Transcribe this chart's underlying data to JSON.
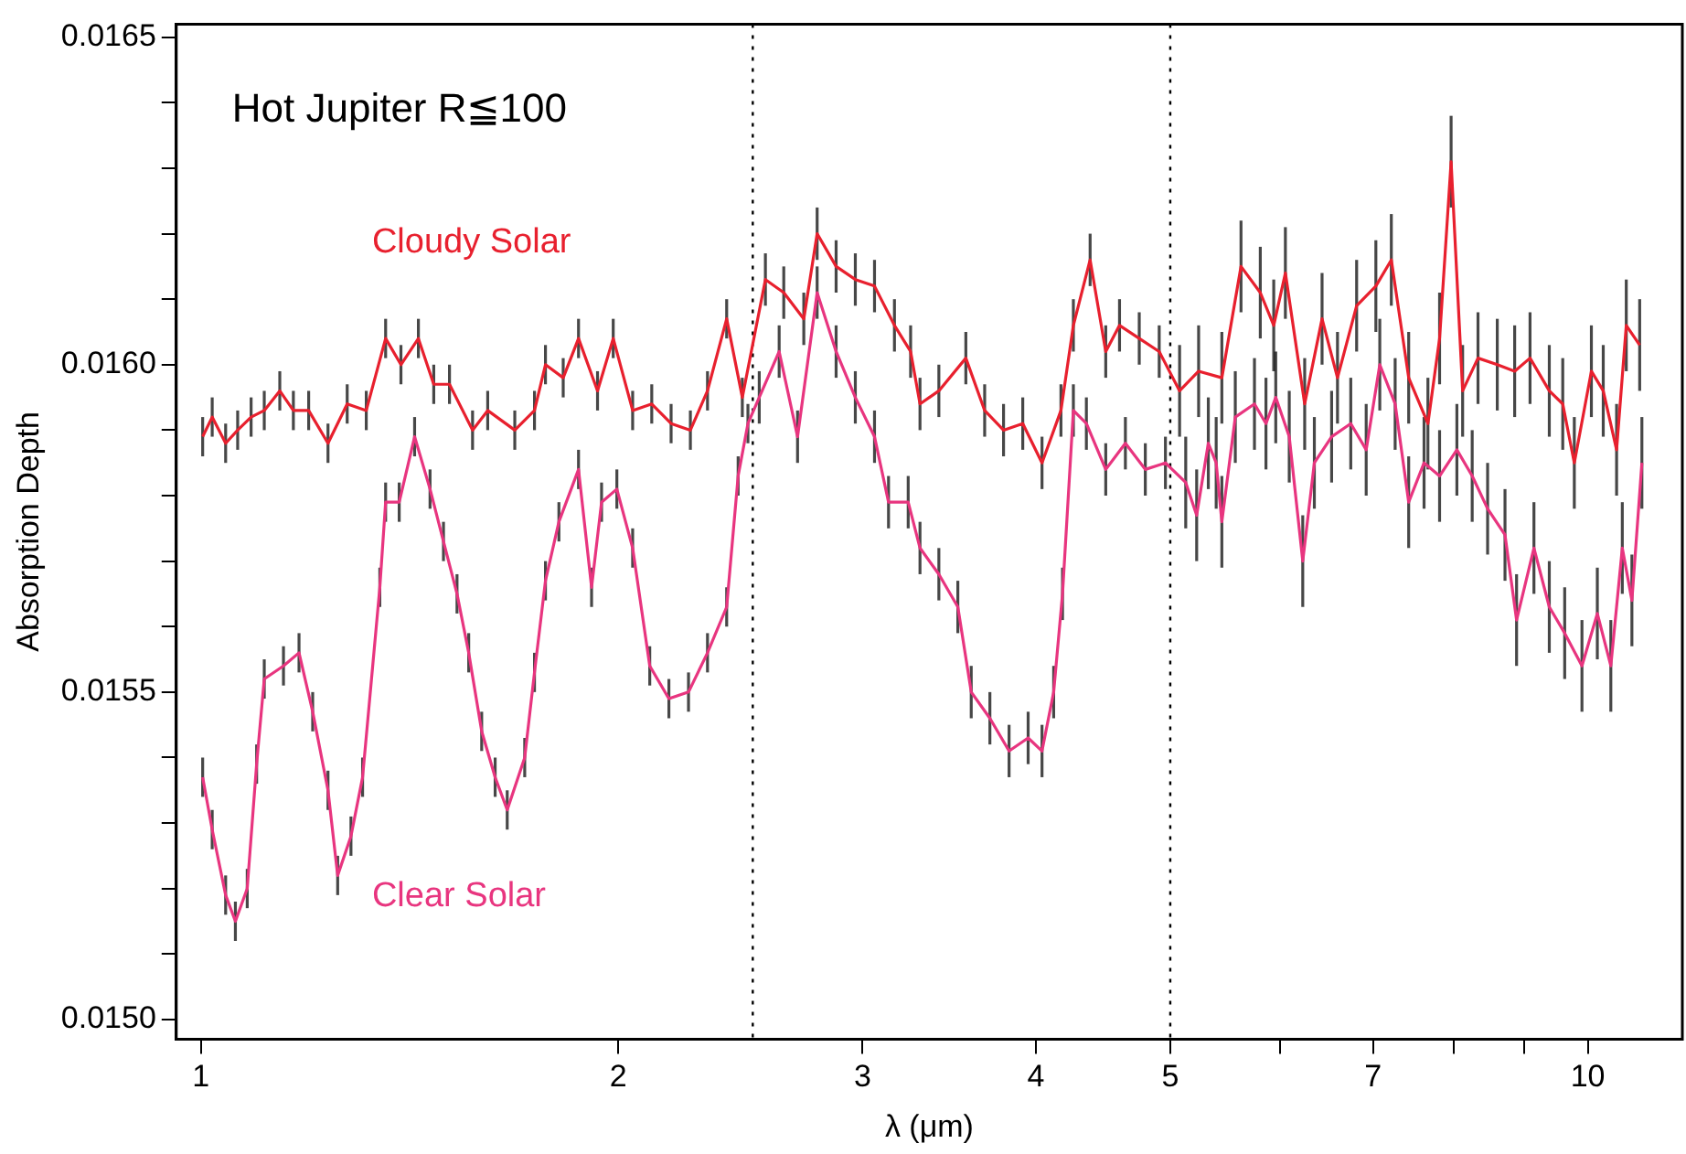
{
  "chart_data": {
    "type": "line",
    "xlabel": "λ (μm)",
    "ylabel": "Absorption Depth",
    "annotations": [
      "Hot Jupiter R≦100"
    ],
    "log": "x",
    "grid": false,
    "marker": "none",
    "line_style": "solid",
    "xlim": [
      0.96,
      11.7
    ],
    "xticks": [
      1,
      2,
      3,
      4,
      5,
      {
        "value": 6,
        "label": null
      },
      7,
      {
        "value": 8,
        "label": null
      },
      {
        "value": 9,
        "label": null
      },
      10
    ],
    "ylim": [
      0.01497,
      0.01652
    ],
    "yticks": [
      {
        "value": 0.015,
        "label": "0.0150"
      },
      {
        "value": 0.0151,
        "label": null
      },
      {
        "value": 0.0152,
        "label": null
      },
      {
        "value": 0.0153,
        "label": null
      },
      {
        "value": 0.0154,
        "label": null
      },
      {
        "value": 0.0155,
        "label": "0.0155"
      },
      {
        "value": 0.0156,
        "label": null
      },
      {
        "value": 0.0157,
        "label": null
      },
      {
        "value": 0.0158,
        "label": null
      },
      {
        "value": 0.0159,
        "label": null
      },
      {
        "value": 0.016,
        "label": "0.0160"
      },
      {
        "value": 0.0161,
        "label": null
      },
      {
        "value": 0.0162,
        "label": null
      },
      {
        "value": 0.0163,
        "label": null
      },
      {
        "value": 0.0164,
        "label": null
      },
      {
        "value": 0.0165,
        "label": "0.0165"
      }
    ],
    "ref_lines": [
      {
        "axis": "x",
        "value": 2.5,
        "line_style": "dotted",
        "color": "#000000"
      },
      {
        "axis": "x",
        "value": 5,
        "line_style": "dotted",
        "color": "#000000"
      }
    ],
    "series": [
      {
        "name": "Cloudy Solar",
        "color": "#e8202e",
        "x": [
          1.003,
          1.019,
          1.042,
          1.063,
          1.087,
          1.111,
          1.14,
          1.166,
          1.196,
          1.235,
          1.275,
          1.316,
          1.359,
          1.394,
          1.435,
          1.472,
          1.511,
          1.57,
          1.61,
          1.684,
          1.74,
          1.772,
          1.825,
          1.872,
          1.932,
          1.983,
          2.048,
          2.114,
          2.183,
          2.254,
          2.319,
          2.394,
          2.457,
          2.553,
          2.632,
          2.721,
          2.782,
          2.871,
          2.964,
          3.06,
          3.163,
          3.249,
          3.3,
          3.405,
          3.561,
          3.674,
          3.791,
          3.914,
          4.041,
          4.17,
          4.257,
          4.377,
          4.492,
          4.596,
          4.749,
          4.909,
          5.078,
          5.241,
          5.447,
          5.623,
          5.806,
          5.937,
          6.053,
          6.25,
          6.433,
          6.6,
          6.813,
          7.034,
          7.217,
          7.428,
          7.669,
          7.819,
          7.97,
          8.124,
          8.334,
          8.605,
          8.857,
          9.086,
          9.381,
          9.593,
          9.779,
          10.06,
          10.26,
          10.49,
          10.66,
          10.9
        ],
        "values": [
          0.01589,
          0.01592,
          0.01588,
          0.0159,
          0.01592,
          0.01593,
          0.01596,
          0.01593,
          0.01593,
          0.01588,
          0.01594,
          0.01593,
          0.01604,
          0.016,
          0.01604,
          0.01597,
          0.01597,
          0.0159,
          0.01593,
          0.0159,
          0.01593,
          0.016,
          0.01598,
          0.01604,
          0.01596,
          0.01604,
          0.01593,
          0.01594,
          0.01591,
          0.0159,
          0.01596,
          0.01607,
          0.01595,
          0.01613,
          0.01611,
          0.01607,
          0.0162,
          0.01615,
          0.01613,
          0.01612,
          0.01606,
          0.01602,
          0.01594,
          0.01596,
          0.01601,
          0.01593,
          0.0159,
          0.01591,
          0.01585,
          0.01593,
          0.01606,
          0.01616,
          0.01602,
          0.01606,
          0.01604,
          0.01602,
          0.01596,
          0.01599,
          0.01598,
          0.01615,
          0.01611,
          0.01606,
          0.01614,
          0.01594,
          0.01607,
          0.01598,
          0.01609,
          0.01612,
          0.01616,
          0.01598,
          0.01591,
          0.01604,
          0.01631,
          0.01596,
          0.01601,
          0.016,
          0.01599,
          0.01601,
          0.01596,
          0.01594,
          0.01585,
          0.01599,
          0.01596,
          0.01587,
          0.01606,
          0.01603
        ],
        "errors": [
          3e-05,
          3e-05,
          3e-05,
          3e-05,
          3e-05,
          3e-05,
          3e-05,
          3e-05,
          3e-05,
          3e-05,
          3e-05,
          3e-05,
          3e-05,
          3e-05,
          3e-05,
          3e-05,
          3e-05,
          3e-05,
          3e-05,
          3e-05,
          3e-05,
          3e-05,
          3e-05,
          3e-05,
          3e-05,
          3e-05,
          3e-05,
          3e-05,
          3e-05,
          3e-05,
          3e-05,
          3e-05,
          3e-05,
          4e-05,
          4e-05,
          4e-05,
          4e-05,
          4e-05,
          4e-05,
          4e-05,
          4e-05,
          4e-05,
          4e-05,
          4e-05,
          4e-05,
          4e-05,
          4e-05,
          4e-05,
          4e-05,
          4e-05,
          4e-05,
          4e-05,
          4e-05,
          4e-05,
          4e-05,
          4e-05,
          7e-05,
          7e-05,
          7e-05,
          7e-05,
          7e-05,
          7e-05,
          7e-05,
          7e-05,
          7e-05,
          7e-05,
          7e-05,
          7e-05,
          7e-05,
          7e-05,
          7e-05,
          7e-05,
          7e-05,
          7e-05,
          7e-05,
          7e-05,
          7e-05,
          7e-05,
          7e-05,
          7e-05,
          7e-05,
          7e-05,
          7e-05,
          7e-05,
          7e-05,
          7e-05
        ]
      },
      {
        "name": "Clear Solar",
        "color": "#e8357f",
        "x": [
          1.003,
          1.019,
          1.042,
          1.059,
          1.08,
          1.097,
          1.111,
          1.147,
          1.177,
          1.204,
          1.235,
          1.255,
          1.283,
          1.308,
          1.346,
          1.359,
          1.39,
          1.426,
          1.463,
          1.496,
          1.53,
          1.56,
          1.594,
          1.63,
          1.663,
          1.712,
          1.74,
          1.772,
          1.812,
          1.872,
          1.913,
          1.945,
          1.995,
          2.048,
          2.107,
          2.175,
          2.247,
          2.319,
          2.394,
          2.44,
          2.48,
          2.527,
          2.612,
          2.693,
          2.782,
          2.871,
          2.964,
          3.06,
          3.132,
          3.236,
          3.3,
          3.405,
          3.514,
          3.593,
          3.706,
          3.826,
          3.949,
          4.041,
          4.12,
          4.181,
          4.257,
          4.35,
          4.492,
          4.641,
          4.797,
          4.96,
          5.13,
          5.224,
          5.326,
          5.396,
          5.447,
          5.57,
          5.75,
          5.861,
          5.957,
          6.092,
          6.23,
          6.351,
          6.536,
          6.747,
          6.922,
          7.08,
          7.263,
          7.428,
          7.62,
          7.819,
          8.047,
          8.254,
          8.468,
          8.716,
          8.885,
          9.145,
          9.381,
          9.624,
          9.904,
          10.16,
          10.39,
          10.59,
          10.76,
          10.94
        ],
        "values": [
          0.01537,
          0.01529,
          0.01519,
          0.01515,
          0.0152,
          0.01539,
          0.01552,
          0.01554,
          0.01556,
          0.01547,
          0.01535,
          0.01522,
          0.01528,
          0.01537,
          0.01566,
          0.01579,
          0.01579,
          0.01589,
          0.01581,
          0.01573,
          0.01565,
          0.01556,
          0.01544,
          0.01537,
          0.01532,
          0.0154,
          0.01553,
          0.01567,
          0.01576,
          0.01584,
          0.01566,
          0.01579,
          0.01581,
          0.01572,
          0.01554,
          0.01549,
          0.0155,
          0.01556,
          0.01563,
          0.01583,
          0.01591,
          0.01595,
          0.01602,
          0.01589,
          0.01611,
          0.01602,
          0.01595,
          0.01589,
          0.01579,
          0.01579,
          0.01572,
          0.01568,
          0.01563,
          0.0155,
          0.01546,
          0.01541,
          0.01543,
          0.01541,
          0.0155,
          0.01565,
          0.01593,
          0.01591,
          0.01584,
          0.01588,
          0.01584,
          0.01585,
          0.01582,
          0.01577,
          0.01588,
          0.01585,
          0.01576,
          0.01592,
          0.01594,
          0.01591,
          0.01595,
          0.01589,
          0.0157,
          0.01585,
          0.01589,
          0.01591,
          0.01587,
          0.016,
          0.01594,
          0.01579,
          0.01585,
          0.01583,
          0.01587,
          0.01583,
          0.01578,
          0.01574,
          0.01561,
          0.01572,
          0.01563,
          0.01559,
          0.01554,
          0.01562,
          0.01554,
          0.01572,
          0.01564,
          0.01585
        ],
        "errors": [
          3e-05,
          3e-05,
          3e-05,
          3e-05,
          3e-05,
          3e-05,
          3e-05,
          3e-05,
          3e-05,
          3e-05,
          3e-05,
          3e-05,
          3e-05,
          3e-05,
          3e-05,
          3e-05,
          3e-05,
          3e-05,
          3e-05,
          3e-05,
          3e-05,
          3e-05,
          3e-05,
          3e-05,
          3e-05,
          3e-05,
          3e-05,
          3e-05,
          3e-05,
          3e-05,
          3e-05,
          3e-05,
          3e-05,
          3e-05,
          3e-05,
          3e-05,
          3e-05,
          3e-05,
          3e-05,
          3e-05,
          3e-05,
          4e-05,
          4e-05,
          4e-05,
          4e-05,
          4e-05,
          4e-05,
          4e-05,
          4e-05,
          4e-05,
          4e-05,
          4e-05,
          4e-05,
          4e-05,
          4e-05,
          4e-05,
          4e-05,
          4e-05,
          4e-05,
          4e-05,
          4e-05,
          4e-05,
          4e-05,
          4e-05,
          4e-05,
          4e-05,
          7e-05,
          7e-05,
          7e-05,
          7e-05,
          7e-05,
          7e-05,
          7e-05,
          7e-05,
          7e-05,
          7e-05,
          7e-05,
          7e-05,
          7e-05,
          7e-05,
          7e-05,
          7e-05,
          7e-05,
          7e-05,
          7e-05,
          7e-05,
          7e-05,
          7e-05,
          7e-05,
          7e-05,
          7e-05,
          7e-05,
          7e-05,
          7e-05,
          7e-05,
          7e-05,
          7e-05,
          7e-05,
          7e-05,
          7e-05
        ]
      }
    ]
  }
}
